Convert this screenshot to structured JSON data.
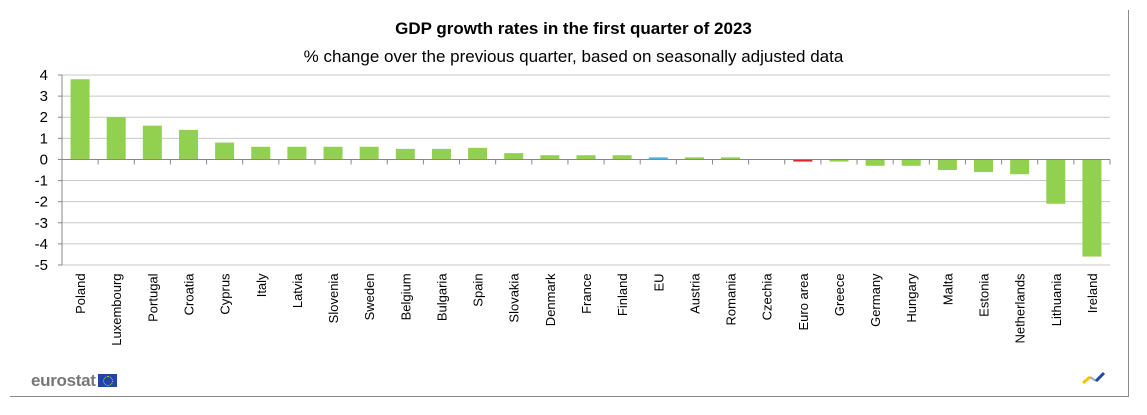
{
  "chart_data": {
    "type": "bar",
    "title": "GDP growth rates in the first quarter of  2023",
    "subtitle": "% change over the previous quarter, based on seasonally adjusted data",
    "xlabel": "",
    "ylabel": "",
    "ylim": [
      -5,
      4
    ],
    "yticks": [
      "4",
      "3",
      "2",
      "1",
      "0",
      "-1",
      "-2",
      "-3",
      "-4",
      "-5"
    ],
    "grid": true,
    "categories": [
      "Poland",
      "Luxembourg",
      "Portugal",
      "Croatia",
      "Cyprus",
      "Italy",
      "Latvia",
      "Slovenia",
      "Sweden",
      "Belgium",
      "Bulgaria",
      "Spain",
      "Slovakia",
      "Denmark",
      "France",
      "Finland",
      "EU",
      "Austria",
      "Romania",
      "Czechia",
      "Euro area",
      "Greece",
      "Germany",
      "Hungary",
      "Malta",
      "Estonia",
      "Netherlands",
      "Lithuania",
      "Ireland"
    ],
    "values": [
      3.8,
      2.0,
      1.6,
      1.4,
      0.8,
      0.6,
      0.6,
      0.6,
      0.6,
      0.5,
      0.5,
      0.55,
      0.3,
      0.2,
      0.2,
      0.2,
      0.1,
      0.1,
      0.1,
      0.0,
      -0.1,
      -0.1,
      -0.3,
      -0.3,
      -0.5,
      -0.6,
      -0.7,
      -2.1,
      -4.6
    ],
    "colors": {
      "country": "#92d050",
      "EU": "#4db3e6",
      "Euro area": "#e0262d"
    }
  },
  "footer": {
    "logo_text": "eurostat"
  }
}
